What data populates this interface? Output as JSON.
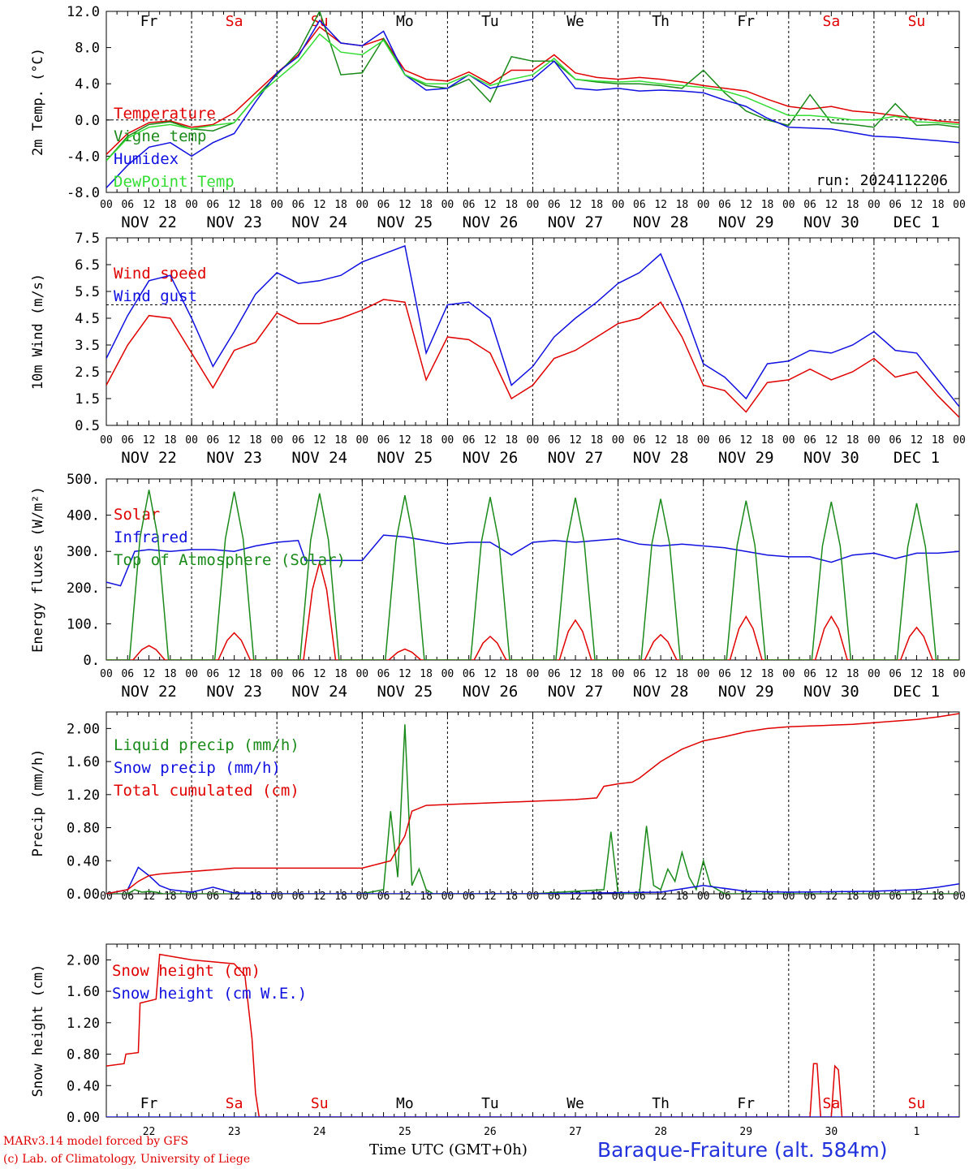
{
  "footer": {
    "model_line": "MARv3.14 model forced by GFS",
    "credit_line": "(c) Lab. of Climatology, University of Liege",
    "time_axis_label": "Time UTC (GMT+0h)",
    "station": "Baraque-Fraiture (alt. 584m)"
  },
  "hour_ticks": [
    "00",
    "06",
    "12",
    "18"
  ],
  "final_hour_tick": "00",
  "date_labels": [
    "NOV 22",
    "NOV 23",
    "NOV 24",
    "NOV 25",
    "NOV 26",
    "NOV 27",
    "NOV 28",
    "NOV 29",
    "NOV 30",
    "DEC  1"
  ],
  "weekdays": [
    "Fr",
    "Sa",
    "Su",
    "Mo",
    "Tu",
    "We",
    "Th",
    "Fr",
    "Sa",
    "Su"
  ],
  "weekday_colors": [
    "#000000",
    "#e00000",
    "#e00000",
    "#000000",
    "#000000",
    "#000000",
    "#000000",
    "#000000",
    "#e00000",
    "#e00000"
  ],
  "day_numbers": [
    "22",
    "23",
    "24",
    "25",
    "26",
    "27",
    "28",
    "29",
    "30",
    "1"
  ],
  "colors": {
    "red": "#e00000",
    "green": "#1a8a1a",
    "blue": "#1010e0",
    "lightgreen": "#33dd33"
  },
  "chart_data": [
    {
      "type": "line",
      "ylabel": "2m Temp. (°C)",
      "ylim": [
        -8,
        12
      ],
      "yticks": [
        "12.0",
        "8.0",
        "4.0",
        "0.0",
        "-4.0",
        "-8.0"
      ],
      "reference_line": 0,
      "x_unit": "hours since NOV 22 00 UTC",
      "xlim": [
        0,
        240
      ],
      "run_label": "run: 2024112206",
      "series": [
        {
          "name": "Temperature",
          "color": "#e00000",
          "x": [
            0,
            6,
            12,
            18,
            24,
            30,
            36,
            42,
            48,
            54,
            60,
            66,
            72,
            78,
            84,
            90,
            96,
            102,
            108,
            114,
            120,
            126,
            132,
            138,
            144,
            150,
            156,
            162,
            168,
            174,
            180,
            186,
            192,
            198,
            204,
            210,
            216,
            222,
            228,
            234,
            240
          ],
          "y": [
            -3.8,
            -1.5,
            -0.3,
            -0.1,
            -0.8,
            -0.5,
            0.8,
            3.0,
            5.2,
            7.2,
            10.3,
            8.5,
            8.2,
            9.0,
            5.5,
            4.5,
            4.3,
            5.3,
            4.0,
            5.5,
            5.5,
            7.2,
            5.2,
            4.7,
            4.5,
            4.7,
            4.5,
            4.2,
            3.8,
            3.5,
            3.2,
            2.3,
            1.5,
            1.2,
            1.5,
            1.0,
            0.8,
            0.5,
            0.2,
            -0.1,
            -0.3
          ]
        },
        {
          "name": "Vigne temp",
          "color": "#1a8a1a",
          "x": [
            0,
            6,
            12,
            18,
            24,
            30,
            36,
            42,
            48,
            54,
            60,
            66,
            72,
            78,
            84,
            90,
            96,
            102,
            108,
            114,
            120,
            126,
            132,
            138,
            144,
            150,
            156,
            162,
            168,
            174,
            180,
            186,
            192,
            198,
            204,
            210,
            216,
            222,
            228,
            234,
            240
          ],
          "y": [
            -4.5,
            -1.8,
            -0.5,
            -0.2,
            -1.0,
            -1.2,
            -0.3,
            2.5,
            5.0,
            7.5,
            12.5,
            5.0,
            5.2,
            9.0,
            5.0,
            3.8,
            3.5,
            4.5,
            2.0,
            7.0,
            6.5,
            6.5,
            4.5,
            4.2,
            4.0,
            4.0,
            3.8,
            3.5,
            5.5,
            3.0,
            1.0,
            0.0,
            -0.6,
            2.8,
            -0.3,
            -0.5,
            -0.8,
            1.8,
            -0.6,
            -0.5,
            -0.8
          ]
        },
        {
          "name": "Humidex",
          "color": "#1010e0",
          "x": [
            0,
            6,
            12,
            18,
            24,
            30,
            36,
            42,
            48,
            54,
            60,
            66,
            72,
            78,
            84,
            90,
            96,
            102,
            108,
            114,
            120,
            126,
            132,
            138,
            144,
            150,
            156,
            162,
            168,
            174,
            180,
            186,
            192,
            198,
            204,
            210,
            216,
            222,
            228,
            234,
            240
          ],
          "y": [
            -7.5,
            -5.0,
            -3.0,
            -2.5,
            -4.0,
            -2.5,
            -1.5,
            2.0,
            5.2,
            7.0,
            11.0,
            8.5,
            8.2,
            9.8,
            5.0,
            3.3,
            3.5,
            5.0,
            3.5,
            4.0,
            4.5,
            6.5,
            3.5,
            3.3,
            3.5,
            3.2,
            3.3,
            3.2,
            3.0,
            2.2,
            1.5,
            0.2,
            -0.8,
            -0.9,
            -1.0,
            -1.4,
            -1.8,
            -1.9,
            -2.1,
            -2.3,
            -2.5
          ]
        },
        {
          "name": "DewPoint Temp",
          "color": "#33dd33",
          "x": [
            0,
            6,
            12,
            18,
            24,
            30,
            36,
            42,
            48,
            54,
            60,
            66,
            72,
            78,
            84,
            90,
            96,
            102,
            108,
            114,
            120,
            126,
            132,
            138,
            144,
            150,
            156,
            162,
            168,
            174,
            180,
            186,
            192,
            198,
            204,
            210,
            216,
            222,
            228,
            234,
            240
          ],
          "y": [
            -4.5,
            -2.0,
            -0.8,
            -0.5,
            -1.0,
            -0.6,
            -0.3,
            2.5,
            4.5,
            6.5,
            9.5,
            7.5,
            7.2,
            8.8,
            5.0,
            4.0,
            4.0,
            5.0,
            3.8,
            4.5,
            5.0,
            6.8,
            4.5,
            4.3,
            4.2,
            4.3,
            4.0,
            3.8,
            3.6,
            3.2,
            2.5,
            1.5,
            0.5,
            0.5,
            0.3,
            0.0,
            0.0,
            0.4,
            -0.2,
            -0.3,
            -0.5
          ]
        }
      ]
    },
    {
      "type": "line",
      "ylabel": "10m Wind (m/s)",
      "ylim": [
        0.5,
        7.5
      ],
      "yticks": [
        "7.5",
        "6.5",
        "5.5",
        "4.5",
        "3.5",
        "2.5",
        "1.5",
        "0.5"
      ],
      "reference_line": 5.0,
      "x_unit": "hours since NOV 22 00 UTC",
      "xlim": [
        0,
        240
      ],
      "series": [
        {
          "name": "Wind speed",
          "color": "#e00000",
          "x": [
            0,
            6,
            12,
            18,
            24,
            30,
            36,
            42,
            48,
            54,
            60,
            66,
            72,
            78,
            84,
            90,
            96,
            102,
            108,
            114,
            120,
            126,
            132,
            138,
            144,
            150,
            156,
            162,
            168,
            174,
            180,
            186,
            192,
            198,
            204,
            210,
            216,
            222,
            228,
            234,
            240
          ],
          "y": [
            2.0,
            3.5,
            4.6,
            4.5,
            3.2,
            1.9,
            3.3,
            3.6,
            4.7,
            4.3,
            4.3,
            4.5,
            4.8,
            5.2,
            5.1,
            2.2,
            3.8,
            3.7,
            3.2,
            1.5,
            2.0,
            3.0,
            3.3,
            3.8,
            4.3,
            4.5,
            5.1,
            3.8,
            2.0,
            1.8,
            1.0,
            2.1,
            2.2,
            2.6,
            2.2,
            2.5,
            3.0,
            2.3,
            2.5,
            1.6,
            0.8
          ]
        },
        {
          "name": "Wind gust",
          "color": "#1010e0",
          "x": [
            0,
            6,
            12,
            18,
            24,
            30,
            36,
            42,
            48,
            54,
            60,
            66,
            72,
            78,
            84,
            90,
            96,
            102,
            108,
            114,
            120,
            126,
            132,
            138,
            144,
            150,
            156,
            162,
            168,
            174,
            180,
            186,
            192,
            198,
            204,
            210,
            216,
            222,
            228,
            234,
            240
          ],
          "y": [
            3.0,
            4.6,
            5.9,
            6.1,
            4.5,
            2.7,
            4.0,
            5.4,
            6.2,
            5.8,
            5.9,
            6.1,
            6.6,
            6.9,
            7.2,
            3.2,
            5.0,
            5.1,
            4.5,
            2.0,
            2.7,
            3.8,
            4.5,
            5.1,
            5.8,
            6.2,
            6.9,
            5.0,
            2.8,
            2.3,
            1.5,
            2.8,
            2.9,
            3.3,
            3.2,
            3.5,
            4.0,
            3.3,
            3.2,
            2.2,
            1.2
          ]
        }
      ]
    },
    {
      "type": "line",
      "ylabel": "Energy fluxes (W/m²)",
      "ylim": [
        0,
        500
      ],
      "yticks": [
        "500.",
        "400.",
        "300.",
        "200.",
        "100.",
        "0."
      ],
      "x_unit": "hours since NOV 22 00 UTC",
      "xlim": [
        0,
        240
      ],
      "series": [
        {
          "name": "Solar",
          "color": "#e00000",
          "daily_peak_hour": 12,
          "daily_peaks": [
            40,
            75,
            270,
            30,
            65,
            110,
            70,
            120,
            120,
            90
          ]
        },
        {
          "name": "Infrared",
          "color": "#1010e0",
          "x": [
            0,
            4,
            8,
            12,
            18,
            24,
            30,
            36,
            42,
            48,
            54,
            56,
            60,
            66,
            72,
            78,
            84,
            90,
            96,
            102,
            108,
            114,
            120,
            126,
            132,
            138,
            144,
            150,
            156,
            162,
            168,
            174,
            180,
            186,
            192,
            198,
            204,
            210,
            216,
            222,
            228,
            234,
            240
          ],
          "y": [
            215,
            205,
            300,
            305,
            300,
            305,
            305,
            300,
            315,
            325,
            330,
            275,
            275,
            275,
            275,
            345,
            340,
            330,
            320,
            325,
            325,
            290,
            325,
            330,
            325,
            330,
            335,
            320,
            315,
            320,
            315,
            310,
            300,
            290,
            285,
            285,
            270,
            290,
            295,
            280,
            295,
            295,
            300
          ]
        },
        {
          "name": "Top of Atmosphere (Solar)",
          "color": "#1a8a1a",
          "daily_peak_hour": 12,
          "daily_peaks": [
            470,
            465,
            460,
            455,
            450,
            448,
            445,
            440,
            437,
            433
          ]
        }
      ]
    },
    {
      "type": "line",
      "ylabel": "Precip (mm/h)",
      "ylim": [
        0,
        2.2
      ],
      "yticks": [
        "2.00",
        "1.60",
        "1.20",
        "0.80",
        "0.40",
        "0.00"
      ],
      "x_unit": "hours since NOV 22 00 UTC",
      "xlim": [
        0,
        240
      ],
      "series": [
        {
          "name": "Liquid precip (mm/h)",
          "color": "#1a8a1a",
          "x": [
            0,
            6,
            8,
            10,
            12,
            14,
            16,
            18,
            60,
            72,
            78,
            80,
            82,
            84,
            86,
            88,
            90,
            92,
            94,
            120,
            140,
            142,
            144,
            146,
            150,
            152,
            154,
            156,
            158,
            160,
            162,
            164,
            166,
            168,
            170,
            172,
            174,
            176,
            180,
            200,
            240
          ],
          "y": [
            0,
            0,
            0.05,
            0.02,
            0.03,
            0.02,
            0,
            0,
            0,
            0,
            0.05,
            1.0,
            0.2,
            2.05,
            0.1,
            0.3,
            0.05,
            0,
            0,
            0,
            0.05,
            0.75,
            0,
            0,
            0,
            0.82,
            0.1,
            0.05,
            0.3,
            0.15,
            0.5,
            0.2,
            0.05,
            0.4,
            0.1,
            0.05,
            0,
            0,
            0,
            0,
            0
          ]
        },
        {
          "name": "Snow precip (mm/h)",
          "color": "#1010e0",
          "x": [
            0,
            6,
            9,
            12,
            15,
            18,
            24,
            30,
            36,
            48,
            84,
            120,
            156,
            168,
            180,
            192,
            216,
            228,
            234,
            240
          ],
          "y": [
            0,
            0.05,
            0.32,
            0.22,
            0.1,
            0.05,
            0.02,
            0.08,
            0.01,
            0,
            0,
            0,
            0.02,
            0.1,
            0.03,
            0.02,
            0.03,
            0.05,
            0.08,
            0.12
          ]
        },
        {
          "name": "Total cumulated (cm)",
          "color": "#e00000",
          "x": [
            0,
            6,
            9,
            12,
            15,
            18,
            24,
            30,
            36,
            48,
            60,
            72,
            80,
            84,
            86,
            90,
            96,
            108,
            120,
            132,
            138,
            140,
            144,
            148,
            150,
            156,
            162,
            168,
            174,
            180,
            186,
            192,
            198,
            204,
            210,
            216,
            222,
            228,
            234,
            240
          ],
          "y": [
            0,
            0.05,
            0.15,
            0.22,
            0.24,
            0.25,
            0.27,
            0.29,
            0.31,
            0.31,
            0.31,
            0.31,
            0.4,
            0.7,
            1.0,
            1.07,
            1.08,
            1.1,
            1.12,
            1.14,
            1.16,
            1.3,
            1.33,
            1.35,
            1.4,
            1.6,
            1.75,
            1.85,
            1.9,
            1.96,
            2.0,
            2.02,
            2.03,
            2.04,
            2.05,
            2.07,
            2.09,
            2.11,
            2.14,
            2.18
          ]
        }
      ]
    },
    {
      "type": "line",
      "ylabel": "Snow height (cm)",
      "ylim": [
        0,
        2.2
      ],
      "yticks": [
        "2.00",
        "1.60",
        "1.20",
        "0.80",
        "0.40",
        "0.00"
      ],
      "x_unit": "hours since NOV 22 00 UTC",
      "xlim": [
        0,
        240
      ],
      "series": [
        {
          "name": "Snow height (cm)",
          "color": "#e00000",
          "x": [
            0,
            5,
            5.5,
            9,
            9.5,
            14,
            15,
            24,
            36,
            39,
            41,
            42,
            43,
            44,
            198,
            199,
            200,
            201,
            204,
            205,
            206,
            207,
            208,
            240
          ],
          "y": [
            0.65,
            0.68,
            0.8,
            0.82,
            1.45,
            1.5,
            2.07,
            2.0,
            1.95,
            1.8,
            1.0,
            0.3,
            0,
            0,
            0,
            0.68,
            0.68,
            0,
            0,
            0.65,
            0.6,
            0,
            0,
            0
          ]
        },
        {
          "name": "Snow height (cm W.E.)",
          "color": "#1010e0",
          "x": [
            0,
            240
          ],
          "y": [
            0,
            0
          ]
        }
      ]
    }
  ]
}
